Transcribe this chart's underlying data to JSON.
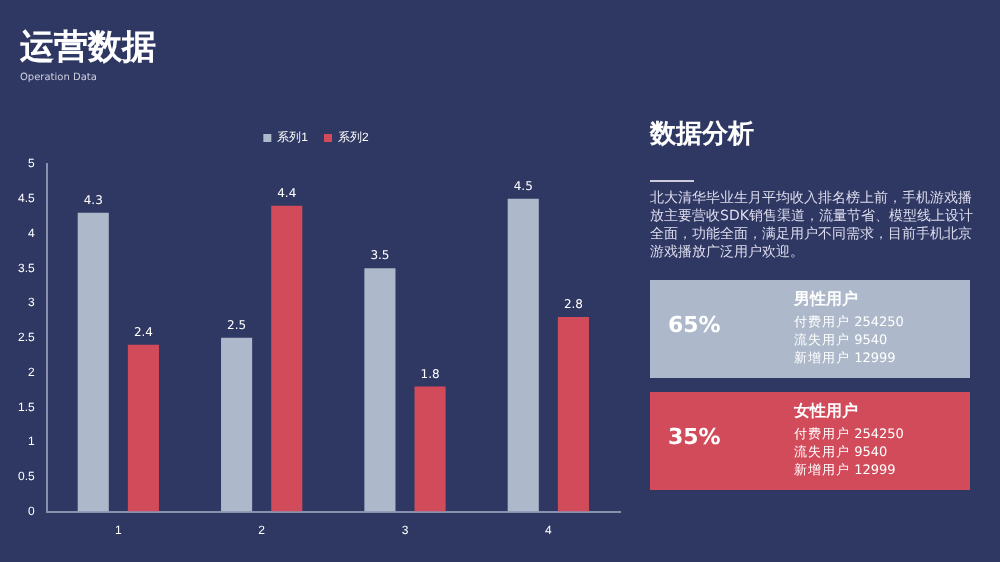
{
  "chart_data": [
    {
      "type": "bar",
      "title": "运营数据",
      "subtitle": "Operation Data",
      "categories": [
        "1",
        "2",
        "3",
        "4"
      ],
      "series": [
        {
          "name": "系列1",
          "color": "#adb9ca",
          "values": [
            4.3,
            2.5,
            3.5,
            4.5
          ]
        },
        {
          "name": "系列2",
          "color": "#d24b5a",
          "values": [
            2.4,
            4.4,
            1.8,
            2.8
          ]
        }
      ],
      "ylim": [
        0,
        5
      ],
      "yticks": [
        0,
        0.5,
        1,
        1.5,
        2,
        2.5,
        3,
        3.5,
        4,
        4.5,
        5
      ],
      "grid": false,
      "legend": "top",
      "data_labels": true
    },
    {
      "type": "other",
      "title": "数据分析",
      "colors": [
        "#adb9ca",
        "#d24b5a"
      ],
      "annotations": [
        "北大清华毕业生月平均收入排名榜上前，手机游戏播放主要营收SDK销售渠道，流量节省、模型线上设计全面，功能全面，满足用户不同需求，目前手机北京游戏播放广泛用户欢迎。",
        "65%",
        "男性用户",
        "付费用户 254250",
        "流失用户 9540",
        "新增用户 12999",
        "35%",
        "女性用户",
        "付费用户 254250",
        "流失用户 9540",
        "新增用户 12999"
      ]
    }
  ]
}
